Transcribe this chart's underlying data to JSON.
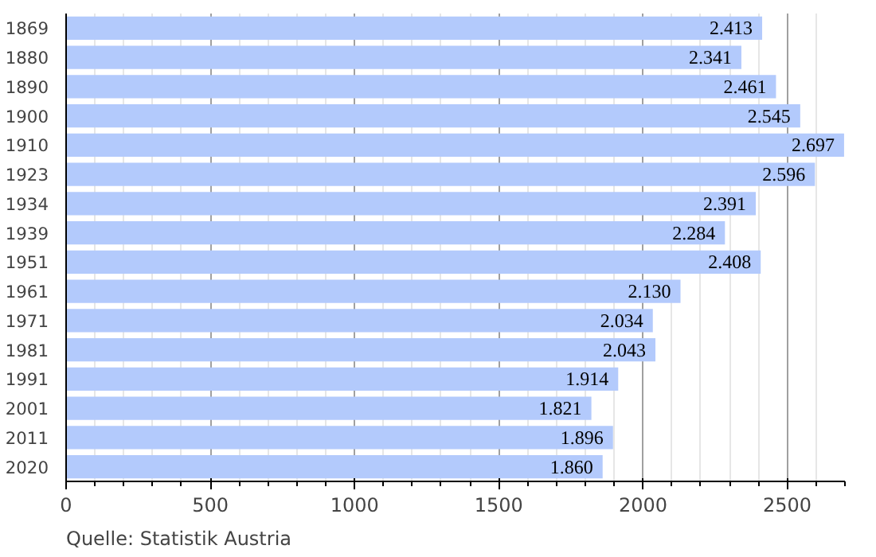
{
  "chart_data": {
    "type": "bar",
    "orientation": "horizontal",
    "categories": [
      "1869",
      "1880",
      "1890",
      "1900",
      "1910",
      "1923",
      "1934",
      "1939",
      "1951",
      "1961",
      "1971",
      "1981",
      "1991",
      "2001",
      "2011",
      "2020"
    ],
    "values": [
      2413,
      2341,
      2461,
      2545,
      2697,
      2596,
      2391,
      2284,
      2408,
      2130,
      2034,
      2043,
      1914,
      1821,
      1896,
      1860
    ],
    "value_labels": [
      "2.413",
      "2.341",
      "2.461",
      "2.545",
      "2.697",
      "2.596",
      "2.391",
      "2.284",
      "2.408",
      "2.130",
      "2.034",
      "2.043",
      "1.914",
      "1.821",
      "1.896",
      "1.860"
    ],
    "color": "#b3cafc",
    "xlim": [
      0,
      2700
    ],
    "xticks": [
      0,
      500,
      1000,
      1500,
      2000,
      2500
    ],
    "grid": "x",
    "annotations": [
      "Quelle: Statistik Austria"
    ]
  }
}
